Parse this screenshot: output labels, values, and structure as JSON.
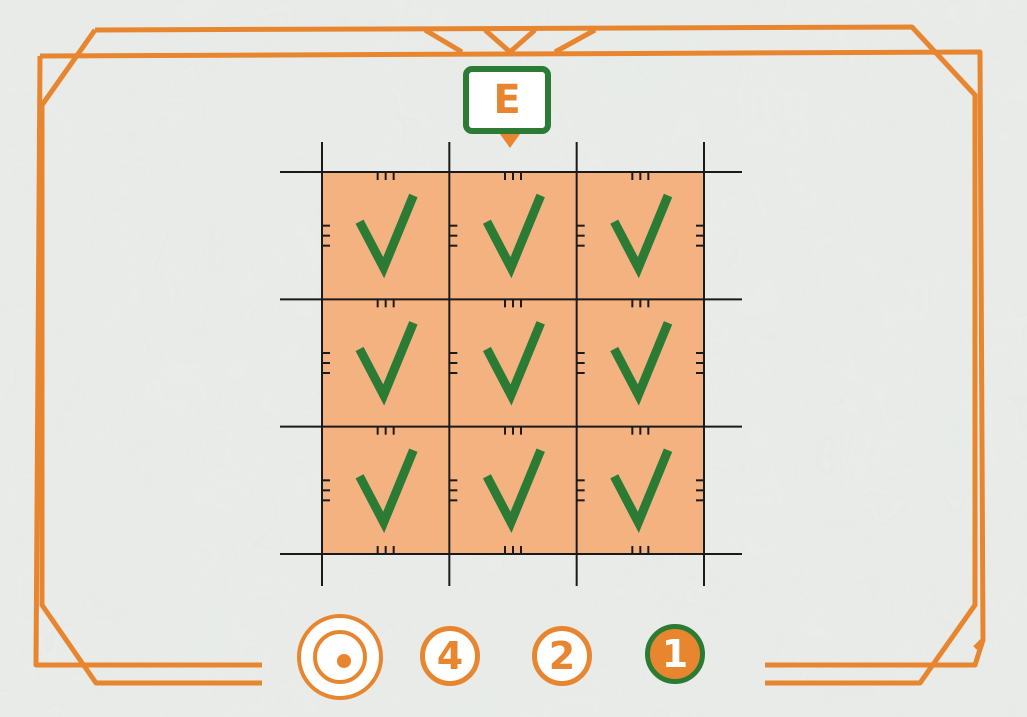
{
  "card": {
    "letter": "E",
    "accent_color": "#e88630",
    "check_color": "#2c7b35",
    "cell_fill": "#f3b27f",
    "background_color": "#e4e7e3"
  },
  "grid": {
    "rows": 3,
    "cols": 3,
    "cells": [
      [
        "check-icon",
        "check-icon",
        "check-icon"
      ],
      [
        "check-icon",
        "check-icon",
        "check-icon"
      ],
      [
        "check-icon",
        "check-icon",
        "check-icon"
      ]
    ]
  },
  "scoring": {
    "icon": "target-icon",
    "medals": [
      {
        "value": "4",
        "style": "outline"
      },
      {
        "value": "2",
        "style": "outline"
      },
      {
        "value": "1",
        "style": "filled"
      }
    ]
  }
}
